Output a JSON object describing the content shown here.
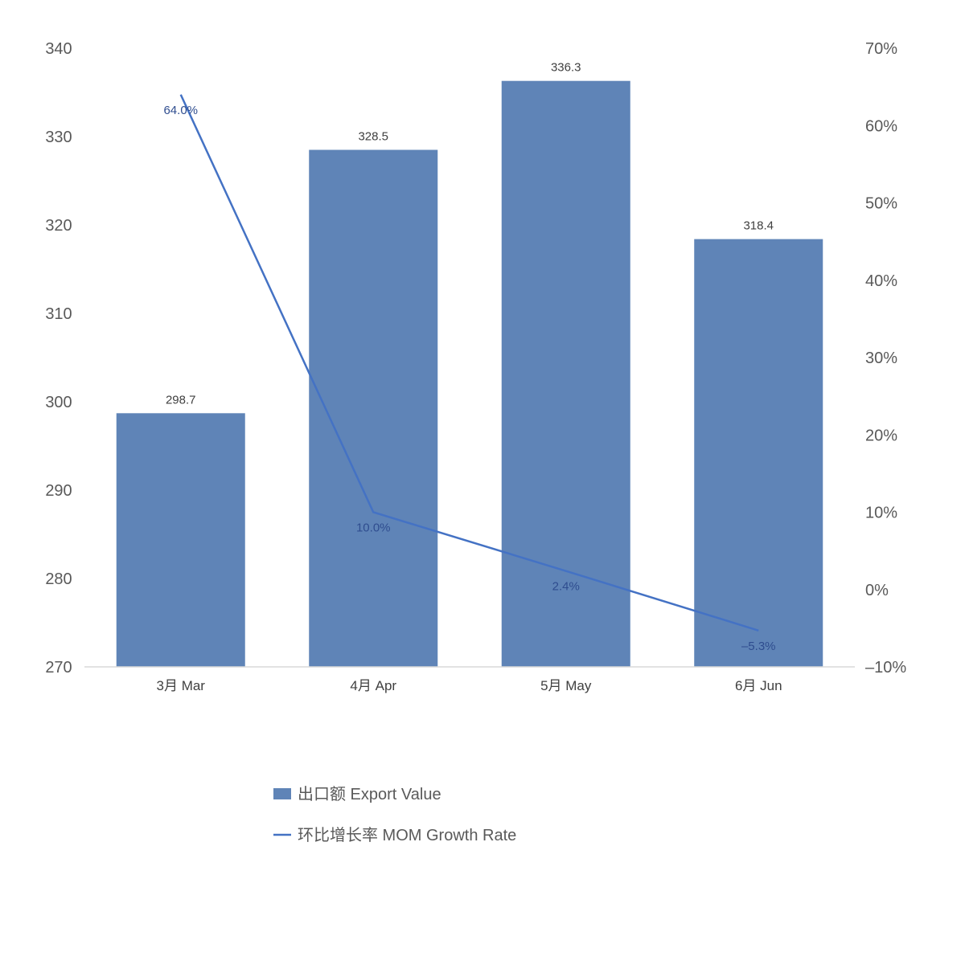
{
  "chart_data": {
    "type": "bar",
    "categories": [
      "3月 Mar",
      "4月 Apr",
      "5月 May",
      "6月 Jun"
    ],
    "series": [
      {
        "name": "出口额 Export Value",
        "kind": "bar",
        "axis": "left",
        "color": "#5f84b7",
        "values": [
          298.7,
          328.5,
          336.3,
          318.4
        ],
        "labels": [
          "298.7",
          "328.5",
          "336.3",
          "318.4"
        ]
      },
      {
        "name": "环比增长率 MOM Growth Rate",
        "kind": "line",
        "axis": "right",
        "color": "#4472c4",
        "values": [
          64.0,
          10.0,
          2.4,
          -5.3
        ],
        "labels": [
          "64.0%",
          "10.0%",
          "2.4%",
          "–5.3%"
        ]
      }
    ],
    "y_left": {
      "ylim": [
        270,
        340
      ],
      "ticks": [
        270,
        280,
        290,
        300,
        310,
        320,
        330,
        340
      ],
      "tick_labels": [
        "270",
        "280",
        "290",
        "300",
        "310",
        "320",
        "330",
        "340"
      ]
    },
    "y_right": {
      "ylim": [
        -10,
        70
      ],
      "ticks": [
        -10,
        0,
        10,
        20,
        30,
        40,
        50,
        60,
        70
      ],
      "tick_labels": [
        "–10%",
        "0%",
        "10%",
        "20%",
        "30%",
        "40%",
        "50%",
        "60%",
        "70%"
      ]
    },
    "grid": false,
    "legend_position": "bottom",
    "title": "",
    "xlabel": "",
    "ylabel": ""
  }
}
